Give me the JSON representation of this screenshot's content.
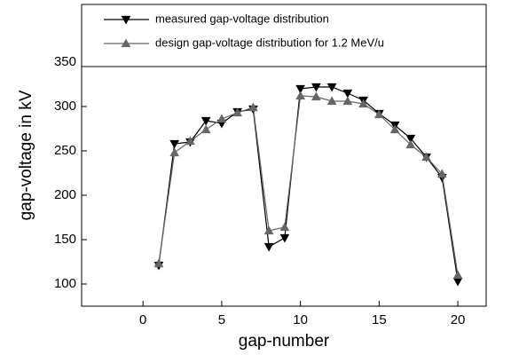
{
  "chart_data": {
    "type": "line",
    "x_label": "gap-number",
    "y_label": "gap-voltage in kV",
    "x": [
      1,
      2,
      3,
      4,
      5,
      6,
      7,
      8,
      9,
      10,
      11,
      12,
      13,
      14,
      15,
      16,
      17,
      18,
      19,
      20
    ],
    "series": [
      {
        "name": "measured gap-voltage distribution",
        "color": "#000000",
        "marker": "triangle-down",
        "values": [
          121,
          258,
          260,
          284,
          281,
          294,
          297,
          142,
          152,
          320,
          322,
          322,
          315,
          307,
          292,
          279,
          264,
          243,
          220,
          103
        ]
      },
      {
        "name": "design gap-voltage distribution for 1.2 MeV/u",
        "color": "#666666",
        "marker": "triangle-up",
        "values": [
          123,
          248,
          261,
          274,
          286,
          293,
          299,
          160,
          164,
          312,
          311,
          306,
          306,
          303,
          291,
          274,
          257,
          243,
          224,
          110
        ]
      }
    ],
    "xlim": [
      -3.9,
      21.8
    ],
    "xticks": [
      0,
      5,
      10,
      15,
      20
    ],
    "ylim": [
      75,
      415
    ],
    "yticks": [
      100,
      150,
      200,
      250,
      300,
      350
    ]
  }
}
